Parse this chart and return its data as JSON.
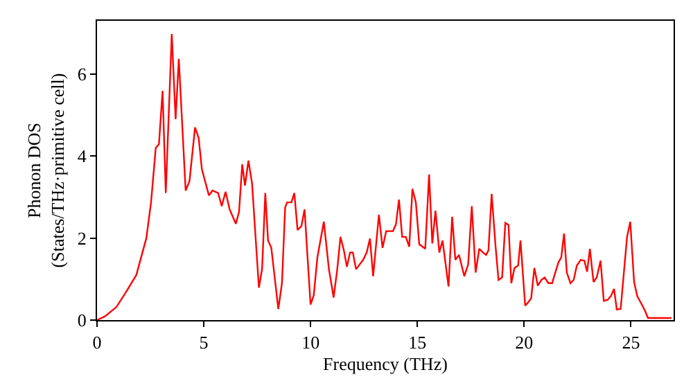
{
  "chart_data": {
    "type": "line",
    "xlabel": "Frequency (THz)",
    "ylabel": "Phonon DOS\n(States/THz·primitive cell)",
    "xlim": [
      0,
      27
    ],
    "ylim": [
      0,
      7.3
    ],
    "xticks": [
      0,
      5,
      10,
      15,
      20,
      25
    ],
    "yticks": [
      0,
      2,
      4,
      6
    ],
    "marker": "none",
    "line_style": "solid",
    "series": [
      {
        "color": "#ff0000",
        "x": [
          0,
          0.37,
          0.91,
          1.34,
          1.84,
          2.31,
          2.53,
          2.75,
          2.9,
          3.07,
          3.22,
          3.5,
          3.68,
          3.83,
          4.15,
          4.33,
          4.59,
          4.76,
          4.91,
          5.24,
          5.41,
          5.67,
          5.84,
          6.02,
          6.21,
          6.5,
          6.65,
          6.8,
          6.93,
          7.09,
          7.26,
          7.58,
          7.73,
          7.88,
          8.01,
          8.16,
          8.49,
          8.66,
          8.81,
          8.9,
          9.1,
          9.24,
          9.39,
          9.57,
          9.72,
          9.85,
          10.0,
          10.15,
          10.32,
          10.62,
          10.86,
          11.08,
          11.25,
          11.4,
          11.56,
          11.7,
          11.85,
          11.98,
          12.13,
          12.46,
          12.63,
          12.78,
          12.93,
          13.2,
          13.37,
          13.54,
          13.86,
          14.0,
          14.14,
          14.29,
          14.46,
          14.62,
          14.77,
          14.93,
          15.09,
          15.37,
          15.55,
          15.7,
          15.85,
          16.03,
          16.18,
          16.46,
          16.63,
          16.78,
          16.95,
          17.2,
          17.38,
          17.55,
          17.73,
          17.9,
          18.07,
          18.22,
          18.33,
          18.48,
          18.66,
          18.8,
          18.97,
          19.12,
          19.27,
          19.4,
          19.55,
          19.72,
          19.83,
          20.05,
          20.2,
          20.33,
          20.48,
          20.64,
          20.81,
          20.96,
          21.14,
          21.31,
          21.46,
          21.61,
          21.74,
          21.87,
          22.0,
          22.17,
          22.32,
          22.47,
          22.65,
          22.82,
          22.95,
          23.08,
          23.25,
          23.4,
          23.58,
          23.73,
          23.9,
          24.06,
          24.21,
          24.34,
          24.52,
          24.82,
          24.97,
          25.15,
          25.3,
          25.48,
          25.65,
          25.8,
          26.9
        ],
        "values": [
          0,
          0.09,
          0.32,
          0.67,
          1.1,
          2.0,
          2.87,
          4.2,
          4.29,
          5.59,
          3.1,
          6.98,
          4.9,
          6.37,
          3.16,
          3.39,
          4.7,
          4.44,
          3.68,
          3.04,
          3.16,
          3.1,
          2.78,
          3.13,
          2.7,
          2.35,
          2.64,
          3.8,
          3.28,
          3.89,
          3.33,
          0.79,
          1.25,
          3.1,
          1.94,
          1.77,
          0.27,
          0.9,
          2.75,
          2.87,
          2.87,
          3.1,
          2.2,
          2.29,
          2.7,
          1.6,
          0.38,
          0.61,
          1.53,
          2.4,
          1.24,
          0.55,
          1.24,
          2.03,
          1.7,
          1.3,
          1.65,
          1.65,
          1.24,
          1.47,
          1.65,
          1.99,
          1.07,
          2.57,
          1.76,
          2.17,
          2.17,
          2.34,
          2.94,
          2.03,
          2.03,
          1.79,
          3.2,
          2.87,
          1.85,
          1.74,
          3.55,
          1.87,
          2.67,
          1.65,
          1.94,
          0.82,
          2.52,
          1.47,
          1.59,
          1.07,
          1.36,
          2.78,
          1.16,
          1.74,
          1.65,
          1.59,
          1.7,
          3.08,
          1.82,
          0.98,
          1.04,
          2.37,
          2.32,
          0.9,
          1.27,
          1.33,
          1.94,
          0.35,
          0.44,
          0.53,
          1.27,
          0.84,
          0.98,
          1.04,
          0.9,
          0.9,
          1.16,
          1.41,
          1.53,
          2.11,
          1.16,
          0.9,
          0.98,
          1.33,
          1.47,
          1.45,
          1.18,
          1.74,
          0.93,
          1.04,
          1.45,
          0.47,
          0.49,
          0.58,
          0.76,
          0.26,
          0.27,
          2.03,
          2.4,
          0.93,
          0.58,
          0.41,
          0.24,
          0.05,
          0.05
        ]
      }
    ]
  }
}
